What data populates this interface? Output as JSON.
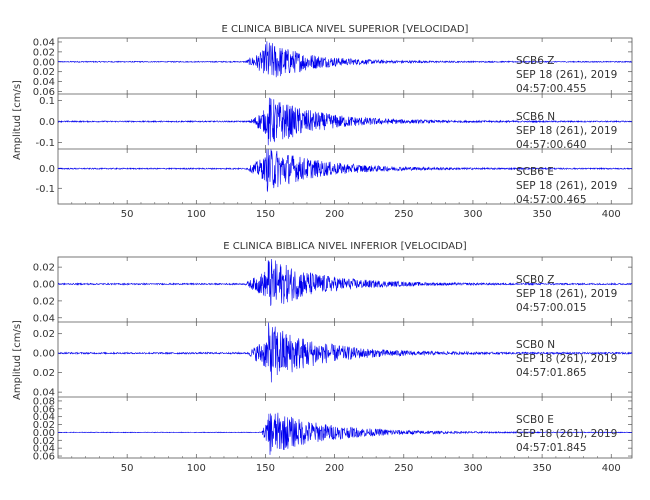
{
  "chart_data": [
    {
      "type": "line",
      "title": "E CLINICA BIBLICA NIVEL SUPERIOR [VELOCIDAD]",
      "xlabel": "",
      "ylabel": "Amplitud [cm/s]",
      "xlim": [
        0,
        415
      ],
      "xticks": [
        "50",
        "100",
        "150",
        "200",
        "250",
        "300",
        "350",
        "400"
      ],
      "series": [
        {
          "label_lines": [
            "SCB6   Z",
            "SEP 18 (261), 2019",
            "04:57:00.455"
          ],
          "ylim": [
            -0.065,
            0.048
          ],
          "ytick_values": [
            -0.06,
            -0.04,
            -0.02,
            0.0,
            0.02,
            0.04
          ],
          "ytick_labels": [
            "0.06",
            "0.04",
            "0.02",
            "0.00",
            "0.02",
            "0.04"
          ],
          "onset": 135,
          "peak_time": 150,
          "peak_amp": 0.045,
          "decay": 30,
          "noise": 0.001
        },
        {
          "label_lines": [
            "SCB6   N",
            "SEP 18 (261), 2019",
            "04:57:00.640"
          ],
          "ylim": [
            -0.13,
            0.13
          ],
          "ytick_values": [
            -0.1,
            0.0,
            0.1
          ],
          "ytick_labels": [
            "-0.1",
            "0.0",
            "0.1"
          ],
          "onset": 138,
          "peak_time": 152,
          "peak_amp": 0.12,
          "decay": 35,
          "noise": 0.003
        },
        {
          "label_lines": [
            "SCB6   E",
            "SEP 18 (261), 2019",
            "04:57:00.465"
          ],
          "ylim": [
            -0.18,
            0.1
          ],
          "ytick_values": [
            -0.1,
            0.0
          ],
          "ytick_labels": [
            "-0.1",
            "0.0"
          ],
          "onset": 136,
          "peak_time": 151,
          "peak_amp": 0.12,
          "decay": 35,
          "noise": 0.003
        }
      ]
    },
    {
      "type": "line",
      "title": "E CLINICA BIBLICA NIVEL INFERIOR [VELOCIDAD]",
      "xlabel": "",
      "ylabel": "Amplitud [cm/s]",
      "xlim": [
        0,
        415
      ],
      "xticks": [
        "50",
        "100",
        "150",
        "200",
        "250",
        "300",
        "350",
        "400"
      ],
      "series": [
        {
          "label_lines": [
            "SCB0   Z",
            "SEP 18 (261), 2019",
            "04:57:00.015"
          ],
          "ylim": [
            -0.045,
            0.032
          ],
          "ytick_values": [
            -0.04,
            -0.02,
            0.0,
            0.02
          ],
          "ytick_labels": [
            "0.04",
            "0.02",
            "0.00",
            "0.02"
          ],
          "onset": 135,
          "peak_time": 152,
          "peak_amp": 0.032,
          "decay": 35,
          "noise": 0.0008
        },
        {
          "label_lines": [
            "SCB0   N",
            "SEP 18 (261), 2019",
            "04:57:01.865"
          ],
          "ylim": [
            -0.045,
            0.032
          ],
          "ytick_values": [
            -0.04,
            -0.02,
            0.0,
            0.02
          ],
          "ytick_labels": [
            "0.04",
            "0.02",
            "0.00",
            "0.02"
          ],
          "onset": 137,
          "peak_time": 152,
          "peak_amp": 0.032,
          "decay": 35,
          "noise": 0.0008
        },
        {
          "label_lines": [
            "SCB0   E",
            "SEP 18 (261), 2019",
            "04:57:01.845"
          ],
          "ylim": [
            -0.065,
            0.09
          ],
          "ytick_values": [
            -0.06,
            -0.04,
            -0.02,
            0.0,
            0.02,
            0.04,
            0.06,
            0.08
          ],
          "ytick_labels": [
            "0.06",
            "0.04",
            "0.02",
            "0.00",
            "0.02",
            "0.04",
            "0.06",
            "0.08"
          ],
          "onset": 147,
          "peak_time": 152,
          "peak_amp": 0.06,
          "decay": 40,
          "noise": 0.0008
        }
      ]
    }
  ],
  "colors": {
    "trace": "#0000ee",
    "axis": "#555555",
    "text": "#333333"
  }
}
